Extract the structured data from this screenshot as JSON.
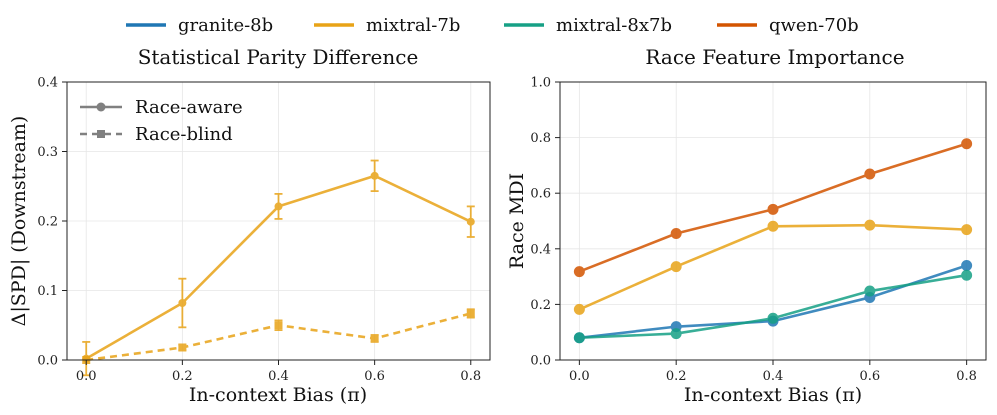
{
  "legend": {
    "entries": [
      {
        "name": "granite-8b",
        "color": "#1f77b4"
      },
      {
        "name": "mixtral-7b",
        "color": "#e8a317"
      },
      {
        "name": "mixtral-8x7b",
        "color": "#16a085"
      },
      {
        "name": "qwen-70b",
        "color": "#d35400"
      }
    ]
  },
  "chart_data": [
    {
      "type": "line",
      "title": "Statistical Parity Difference",
      "xlabel": "In-context Bias (π)",
      "ylabel": "Δ|SPD| (Downstream)",
      "xlim": [
        -0.04,
        0.84
      ],
      "ylim": [
        0.0,
        0.4
      ],
      "xticks": [
        "0.0",
        "0.2",
        "0.4",
        "0.6",
        "0.8"
      ],
      "xtick_values": [
        0.0,
        0.2,
        0.4,
        0.6,
        0.8
      ],
      "yticks": [
        "0.0",
        "0.1",
        "0.2",
        "0.3",
        "0.4"
      ],
      "ytick_values": [
        0.0,
        0.1,
        0.2,
        0.3,
        0.4
      ],
      "grid": true,
      "inner_legend": {
        "placement": "upper-left",
        "entries": [
          {
            "label": "Race-aware",
            "style": "solid",
            "marker": "circle",
            "color": "#808080"
          },
          {
            "label": "Race-blind",
            "style": "dashed",
            "marker": "square",
            "color": "#808080"
          }
        ]
      },
      "x": [
        0.0,
        0.2,
        0.4,
        0.6,
        0.8
      ],
      "series": [
        {
          "name": "mixtral-7b (Race-aware)",
          "color": "#e8a317",
          "style": "solid",
          "marker": "circle",
          "values": [
            0.002,
            0.082,
            0.221,
            0.265,
            0.199
          ],
          "errors": [
            0.024,
            0.035,
            0.018,
            0.022,
            0.022
          ]
        },
        {
          "name": "mixtral-7b (Race-blind)",
          "color": "#e8a317",
          "style": "dashed",
          "marker": "square",
          "values": [
            0.0,
            0.018,
            0.05,
            0.031,
            0.067
          ],
          "errors": [
            0.0,
            0.004,
            0.007,
            0.005,
            0.006
          ]
        }
      ]
    },
    {
      "type": "line",
      "title": "Race Feature Importance",
      "xlabel": "In-context Bias (π)",
      "ylabel": "Race MDI",
      "xlim": [
        -0.04,
        0.84
      ],
      "ylim": [
        0.0,
        1.0
      ],
      "xticks": [
        "0.0",
        "0.2",
        "0.4",
        "0.6",
        "0.8"
      ],
      "xtick_values": [
        0.0,
        0.2,
        0.4,
        0.6,
        0.8
      ],
      "yticks": [
        "0.0",
        "0.2",
        "0.4",
        "0.6",
        "0.8",
        "1.0"
      ],
      "ytick_values": [
        0.0,
        0.2,
        0.4,
        0.6,
        0.8,
        1.0
      ],
      "grid": true,
      "x": [
        0.0,
        0.2,
        0.4,
        0.6,
        0.8
      ],
      "series": [
        {
          "name": "granite-8b",
          "color": "#1f77b4",
          "style": "solid",
          "marker": "circle",
          "values": [
            0.08,
            0.12,
            0.14,
            0.225,
            0.34
          ]
        },
        {
          "name": "mixtral-7b",
          "color": "#e8a317",
          "style": "solid",
          "marker": "circle",
          "values": [
            0.182,
            0.336,
            0.481,
            0.485,
            0.469
          ]
        },
        {
          "name": "mixtral-8x7b",
          "color": "#16a085",
          "style": "solid",
          "marker": "circle",
          "values": [
            0.08,
            0.095,
            0.15,
            0.248,
            0.305
          ]
        },
        {
          "name": "qwen-70b",
          "color": "#d35400",
          "style": "solid",
          "marker": "circle",
          "values": [
            0.318,
            0.455,
            0.542,
            0.669,
            0.778
          ]
        }
      ]
    }
  ]
}
